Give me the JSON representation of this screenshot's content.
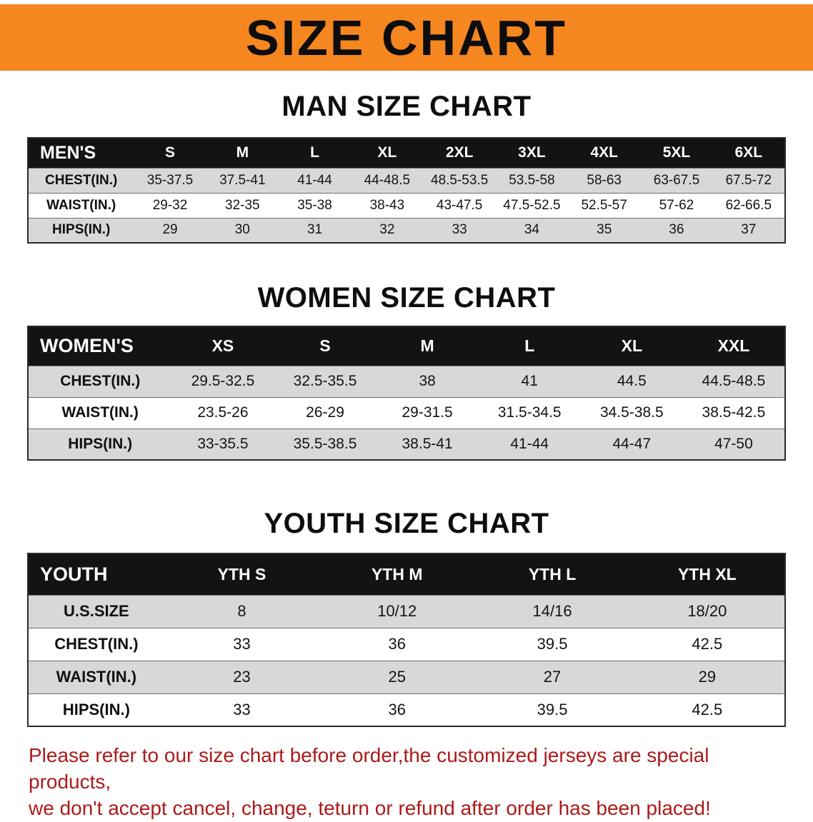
{
  "banner": {
    "title": "SIZE CHART"
  },
  "colors": {
    "banner_bg": "#f6861f",
    "table_header_bg": "#131313",
    "row_stripe": "#d8d8d8",
    "disclaimer_text": "#ad1a1a"
  },
  "sections": [
    {
      "heading": "MAN SIZE CHART",
      "table": {
        "header": [
          "MEN'S",
          "S",
          "M",
          "L",
          "XL",
          "2XL",
          "3XL",
          "4XL",
          "5XL",
          "6XL"
        ],
        "rows": [
          [
            "CHEST(IN.)",
            "35-37.5",
            "37.5-41",
            "41-44",
            "44-48.5",
            "48.5-53.5",
            "53.5-58",
            "58-63",
            "63-67.5",
            "67.5-72"
          ],
          [
            "WAIST(IN.)",
            "29-32",
            "32-35",
            "35-38",
            "38-43",
            "43-47.5",
            "47.5-52.5",
            "52.5-57",
            "57-62",
            "62-66.5"
          ],
          [
            "HIPS(IN.)",
            "29",
            "30",
            "31",
            "32",
            "33",
            "34",
            "35",
            "36",
            "37"
          ]
        ]
      }
    },
    {
      "heading": "WOMEN SIZE CHART",
      "table": {
        "header": [
          "WOMEN'S",
          "XS",
          "S",
          "M",
          "L",
          "XL",
          "XXL"
        ],
        "rows": [
          [
            "CHEST(IN.)",
            "29.5-32.5",
            "32.5-35.5",
            "38",
            "41",
            "44.5",
            "44.5-48.5"
          ],
          [
            "WAIST(IN.)",
            "23.5-26",
            "26-29",
            "29-31.5",
            "31.5-34.5",
            "34.5-38.5",
            "38.5-42.5"
          ],
          [
            "HIPS(IN.)",
            "33-35.5",
            "35.5-38.5",
            "38.5-41",
            "41-44",
            "44-47",
            "47-50"
          ]
        ]
      }
    },
    {
      "heading": "YOUTH SIZE CHART",
      "table": {
        "header": [
          "YOUTH",
          "YTH S",
          "YTH M",
          "YTH L",
          "YTH XL"
        ],
        "rows": [
          [
            "U.S.SIZE",
            "8",
            "10/12",
            "14/16",
            "18/20"
          ],
          [
            "CHEST(IN.)",
            "33",
            "36",
            "39.5",
            "42.5"
          ],
          [
            "WAIST(IN.)",
            "23",
            "25",
            "27",
            "29"
          ],
          [
            "HIPS(IN.)",
            "33",
            "36",
            "39.5",
            "42.5"
          ]
        ]
      }
    }
  ],
  "disclaimer": {
    "line1": "Please refer to our size chart before order,the customized jerseys are special products,",
    "line2": "we don't accept cancel, change, teturn or refund after order has been placed!"
  }
}
